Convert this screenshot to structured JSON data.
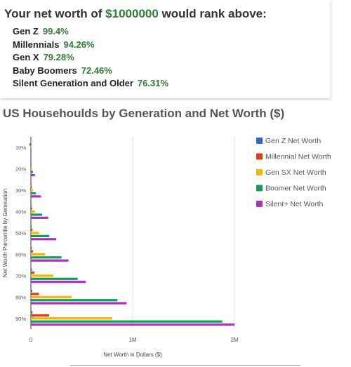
{
  "summary": {
    "title_prefix": "Your net worth of ",
    "amount": "$1000000",
    "title_suffix": " would rank above:",
    "rows": [
      {
        "label": "Gen Z",
        "value": "99.4%"
      },
      {
        "label": "Millennials",
        "value": "94.26%"
      },
      {
        "label": "Gen X",
        "value": "79.28%"
      },
      {
        "label": "Baby Boomers",
        "value": "72.46%"
      },
      {
        "label": "Silent Generation and Older",
        "value": "76.31%"
      }
    ]
  },
  "chart_data": {
    "type": "bar",
    "orientation": "horizontal",
    "title": "US Househoulds by Generation and Net Worth ($)",
    "xlabel": "Net Worth in Dollars ($)",
    "ylabel": "Net Worth Percentile by Generation",
    "categories": [
      "10%",
      "20%",
      "30%",
      "40%",
      "50%",
      "60%",
      "70%",
      "80%",
      "90%"
    ],
    "xlim": [
      0,
      2000000
    ],
    "xticks": [
      0,
      1000000,
      2000000
    ],
    "xtick_labels": [
      "0",
      "1M",
      "2M"
    ],
    "grid": true,
    "legend_position": "right",
    "series": [
      {
        "name": "Gen Z Net Worth",
        "color": "#3366cc",
        "values": [
          -3000,
          1000,
          3000,
          5000,
          7000,
          9000,
          10000,
          12000,
          15000
        ]
      },
      {
        "name": "Millennial Net Worth",
        "color": "#dc3912",
        "values": [
          -15000,
          3000,
          8000,
          12000,
          15000,
          20000,
          35000,
          80000,
          180000
        ]
      },
      {
        "name": "Gen SX Net Worth",
        "color": "#f4b400",
        "values": [
          1000,
          8000,
          20000,
          40000,
          80000,
          140000,
          220000,
          400000,
          800000
        ]
      },
      {
        "name": "Boomer Net Worth",
        "color": "#0f9d58",
        "values": [
          3000,
          20000,
          50000,
          110000,
          180000,
          300000,
          460000,
          850000,
          1880000
        ]
      },
      {
        "name": "Silent+ Net Worth",
        "color": "#ab30c4",
        "values": [
          5000,
          40000,
          100000,
          170000,
          250000,
          370000,
          540000,
          940000,
          2000000
        ]
      }
    ]
  }
}
